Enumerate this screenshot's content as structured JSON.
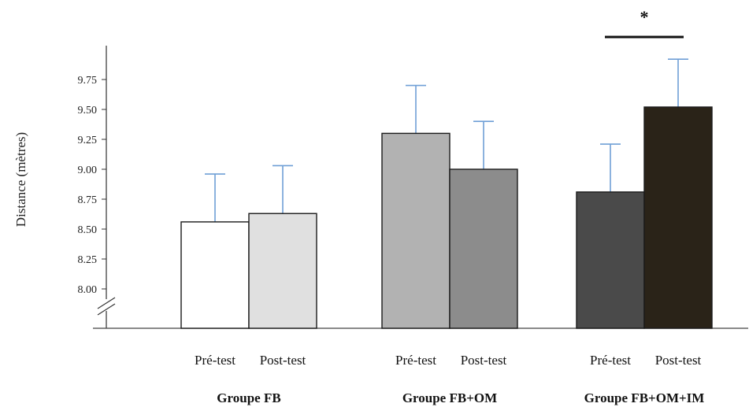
{
  "chart_data": {
    "type": "bar",
    "ylabel": "Distance (mètres)",
    "ylim": [
      7.68,
      10.05
    ],
    "yticks": [
      "8.00",
      "8.25",
      "8.50",
      "8.75",
      "9.00",
      "9.25",
      "9.50",
      "9.75"
    ],
    "axis_break": true,
    "groups": [
      {
        "label": "Groupe FB",
        "bars": [
          {
            "label": "Pré-test",
            "value": 8.56,
            "error": 0.4,
            "color": "#ffffff"
          },
          {
            "label": "Post-test",
            "value": 8.63,
            "error": 0.4,
            "color": "#e0e0e0"
          }
        ]
      },
      {
        "label": "Groupe FB+OM",
        "bars": [
          {
            "label": "Pré-test",
            "value": 9.3,
            "error": 0.4,
            "color": "#b2b2b2"
          },
          {
            "label": "Post-test",
            "value": 9.0,
            "error": 0.4,
            "color": "#8c8c8c"
          }
        ]
      },
      {
        "label": "Groupe FB+OM+IM",
        "bars": [
          {
            "label": "Pré-test",
            "value": 8.81,
            "error": 0.4,
            "color": "#4a4a4a"
          },
          {
            "label": "Post-test",
            "value": 9.52,
            "error": 0.4,
            "color": "#2a2318"
          }
        ]
      }
    ],
    "significance": {
      "label": "*",
      "group_index": 2
    },
    "error_bar_color": "#6f9fd6",
    "bar_edge_color": "#1a1a1a"
  }
}
